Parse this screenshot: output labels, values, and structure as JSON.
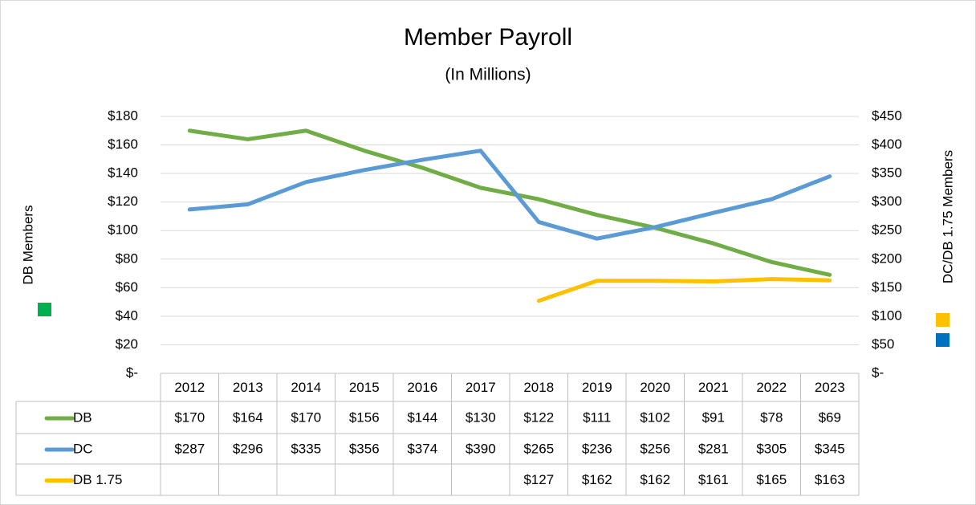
{
  "chart_data": {
    "type": "line",
    "title": "Member Payroll",
    "subtitle": "(In Millions)",
    "y_label": "DB Members",
    "y2_label": "DC/DB 1.75 Members",
    "categories": [
      "2012",
      "2013",
      "2014",
      "2015",
      "2016",
      "2017",
      "2018",
      "2019",
      "2020",
      "2021",
      "2022",
      "2023"
    ],
    "series": [
      {
        "name": "DB",
        "color": "#70ad47",
        "values": [
          170,
          164,
          170,
          156,
          144,
          130,
          122,
          111,
          102,
          91,
          78,
          69
        ],
        "value_labels": [
          "$170",
          "$164",
          "$170",
          "$156",
          "$144",
          "$130",
          "$122",
          "$111",
          "$102",
          "$91",
          "$78",
          "$69"
        ]
      },
      {
        "name": "DC",
        "color": "#5b9bd5",
        "axis": "y2",
        "values": [
          287,
          296,
          335,
          356,
          374,
          390,
          265,
          236,
          256,
          281,
          305,
          345
        ],
        "value_labels": [
          "$287",
          "$296",
          "$335",
          "$356",
          "$374",
          "$390",
          "$265",
          "$236",
          "$256",
          "$281",
          "$305",
          "$345"
        ]
      },
      {
        "name": "DB 1.75",
        "color": "#ffc000",
        "axis": "y2",
        "values": [
          null,
          null,
          null,
          null,
          null,
          null,
          127,
          162,
          162,
          161,
          165,
          163
        ],
        "value_labels": [
          null,
          null,
          null,
          null,
          null,
          null,
          "$127",
          "$162",
          "$162",
          "$161",
          "$165",
          "$163"
        ]
      }
    ],
    "ylim": [
      0,
      180
    ],
    "yticks": [
      {
        "value": 0,
        "label": "$-"
      },
      {
        "value": 20,
        "label": "$20"
      },
      {
        "value": 40,
        "label": "$40"
      },
      {
        "value": 60,
        "label": "$60"
      },
      {
        "value": 80,
        "label": "$80"
      },
      {
        "value": 100,
        "label": "$100"
      },
      {
        "value": 120,
        "label": "$120"
      },
      {
        "value": 140,
        "label": "$140"
      },
      {
        "value": 160,
        "label": "$160"
      },
      {
        "value": 180,
        "label": "$180"
      }
    ],
    "y2lim": [
      0,
      450
    ],
    "y2ticks": [
      {
        "value": 0,
        "label": "$-"
      },
      {
        "value": 50,
        "label": "$50"
      },
      {
        "value": 100,
        "label": "$100"
      },
      {
        "value": 150,
        "label": "$150"
      },
      {
        "value": 200,
        "label": "$200"
      },
      {
        "value": 250,
        "label": "$250"
      },
      {
        "value": 300,
        "label": "$300"
      },
      {
        "value": 350,
        "label": "$350"
      },
      {
        "value": 400,
        "label": "$400"
      },
      {
        "value": 450,
        "label": "$450"
      }
    ],
    "grid": true
  }
}
